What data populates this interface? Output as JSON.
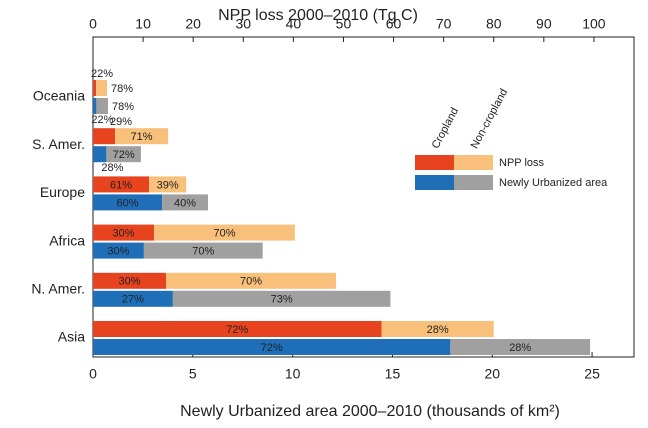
{
  "chart_data": {
    "type": "bar",
    "orientation": "horizontal",
    "x2_title": "NPP loss 2000–2010 (Tg C)",
    "x_title": "Newly Urbanized area 2000–2010 (thousands of km²)",
    "categories": [
      "Oceania",
      "S. Amer.",
      "Europe",
      "Africa",
      "N. Amer.",
      "Asia"
    ],
    "xlim": [
      0,
      27.1
    ],
    "xticks": [
      0,
      5,
      10,
      15,
      20,
      25
    ],
    "x2lim": [
      0,
      108
    ],
    "x2ticks": [
      0,
      10,
      20,
      30,
      40,
      50,
      60,
      70,
      80,
      90,
      100
    ],
    "series": [
      {
        "color": "#e8431f",
        "axis": "x2",
        "row": 0,
        "values": [
          0.6,
          4.4,
          11.2,
          12.2,
          14.6,
          57.6
        ],
        "share_labels": [
          "22%",
          "29%",
          "61%",
          "30%",
          "30%",
          "72%"
        ]
      },
      {
        "color": "#f8c07a",
        "axis": "x2",
        "row": 0,
        "values": [
          2.2,
          10.6,
          7.4,
          28.1,
          33.9,
          22.4
        ],
        "share_labels": [
          "78%",
          "71%",
          "39%",
          "70%",
          "70%",
          "28%"
        ]
      },
      {
        "color": "#1e6fb8",
        "axis": "x",
        "row": 1,
        "values": [
          0.17,
          0.67,
          3.46,
          2.55,
          4.0,
          17.9
        ],
        "share_labels": [
          "22%",
          "28%",
          "60%",
          "30%",
          "27%",
          "72%"
        ]
      },
      {
        "color": "#a0a0a0",
        "axis": "x",
        "row": 1,
        "values": [
          0.58,
          1.73,
          2.3,
          5.95,
          10.9,
          7.0
        ],
        "share_labels": [
          "78%",
          "72%",
          "40%",
          "70%",
          "73%",
          "28%"
        ]
      }
    ],
    "legend": {
      "columns": [
        "Cropland",
        "Non-cropland"
      ],
      "rows": [
        "NPP loss",
        "Newly Urbanized area"
      ]
    }
  }
}
